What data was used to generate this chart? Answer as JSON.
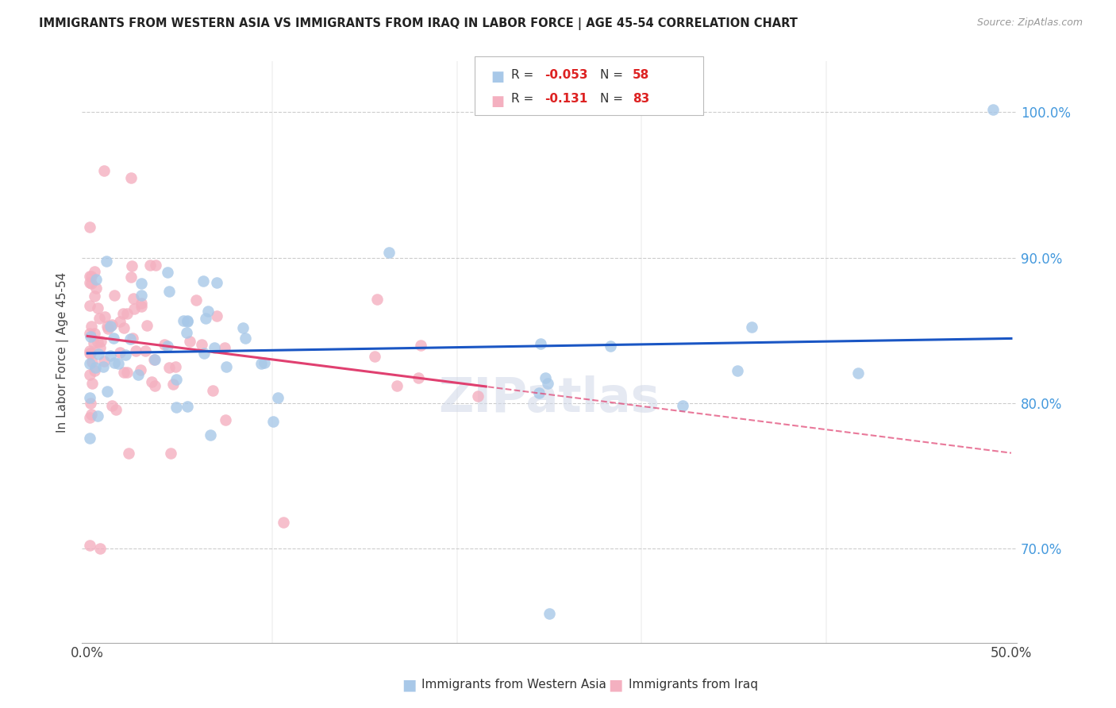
{
  "title": "IMMIGRANTS FROM WESTERN ASIA VS IMMIGRANTS FROM IRAQ IN LABOR FORCE | AGE 45-54 CORRELATION CHART",
  "source": "Source: ZipAtlas.com",
  "ylabel": "In Labor Force | Age 45-54",
  "r_western": -0.053,
  "n_western": 58,
  "r_iraq": -0.131,
  "n_iraq": 83,
  "xlim": [
    -0.003,
    0.503
  ],
  "ylim": [
    0.635,
    1.035
  ],
  "yticks": [
    0.7,
    0.8,
    0.9,
    1.0
  ],
  "ytick_labels": [
    "70.0%",
    "80.0%",
    "90.0%",
    "100.0%"
  ],
  "xtick_vals": [
    0.0,
    0.5
  ],
  "xtick_labels": [
    "0.0%",
    "50.0%"
  ],
  "color_western": "#a8c8e8",
  "color_iraq": "#f4b0c0",
  "line_color_western": "#1a56c4",
  "line_color_iraq": "#e04070",
  "background_color": "#ffffff",
  "grid_color": "#cccccc",
  "right_axis_color": "#4499dd",
  "title_color": "#222222",
  "source_color": "#999999",
  "label_color": "#444444"
}
